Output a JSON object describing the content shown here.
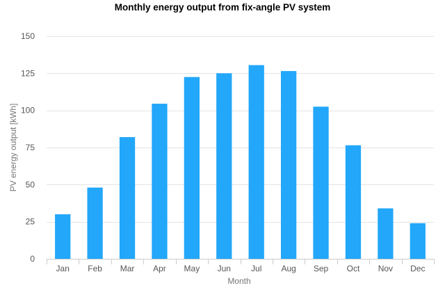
{
  "chart_data": {
    "type": "bar",
    "title": "Monthly energy output from fix-angle PV system",
    "xlabel": "Month",
    "ylabel": "PV energy output [kWh]",
    "categories": [
      "Jan",
      "Feb",
      "Mar",
      "Apr",
      "May",
      "Jun",
      "Jul",
      "Aug",
      "Sep",
      "Oct",
      "Nov",
      "Dec"
    ],
    "values": [
      30,
      48,
      82,
      104.5,
      122.5,
      125,
      130.5,
      126.5,
      102.5,
      76.5,
      34,
      24
    ],
    "ylim": [
      0,
      150
    ],
    "yticks": [
      0,
      25,
      50,
      75,
      100,
      125,
      150
    ],
    "grid": true,
    "legend": "none",
    "bar_color": "#22a7fa",
    "grid_color": "#e3e3e3",
    "axis_color": "#cccccc"
  }
}
